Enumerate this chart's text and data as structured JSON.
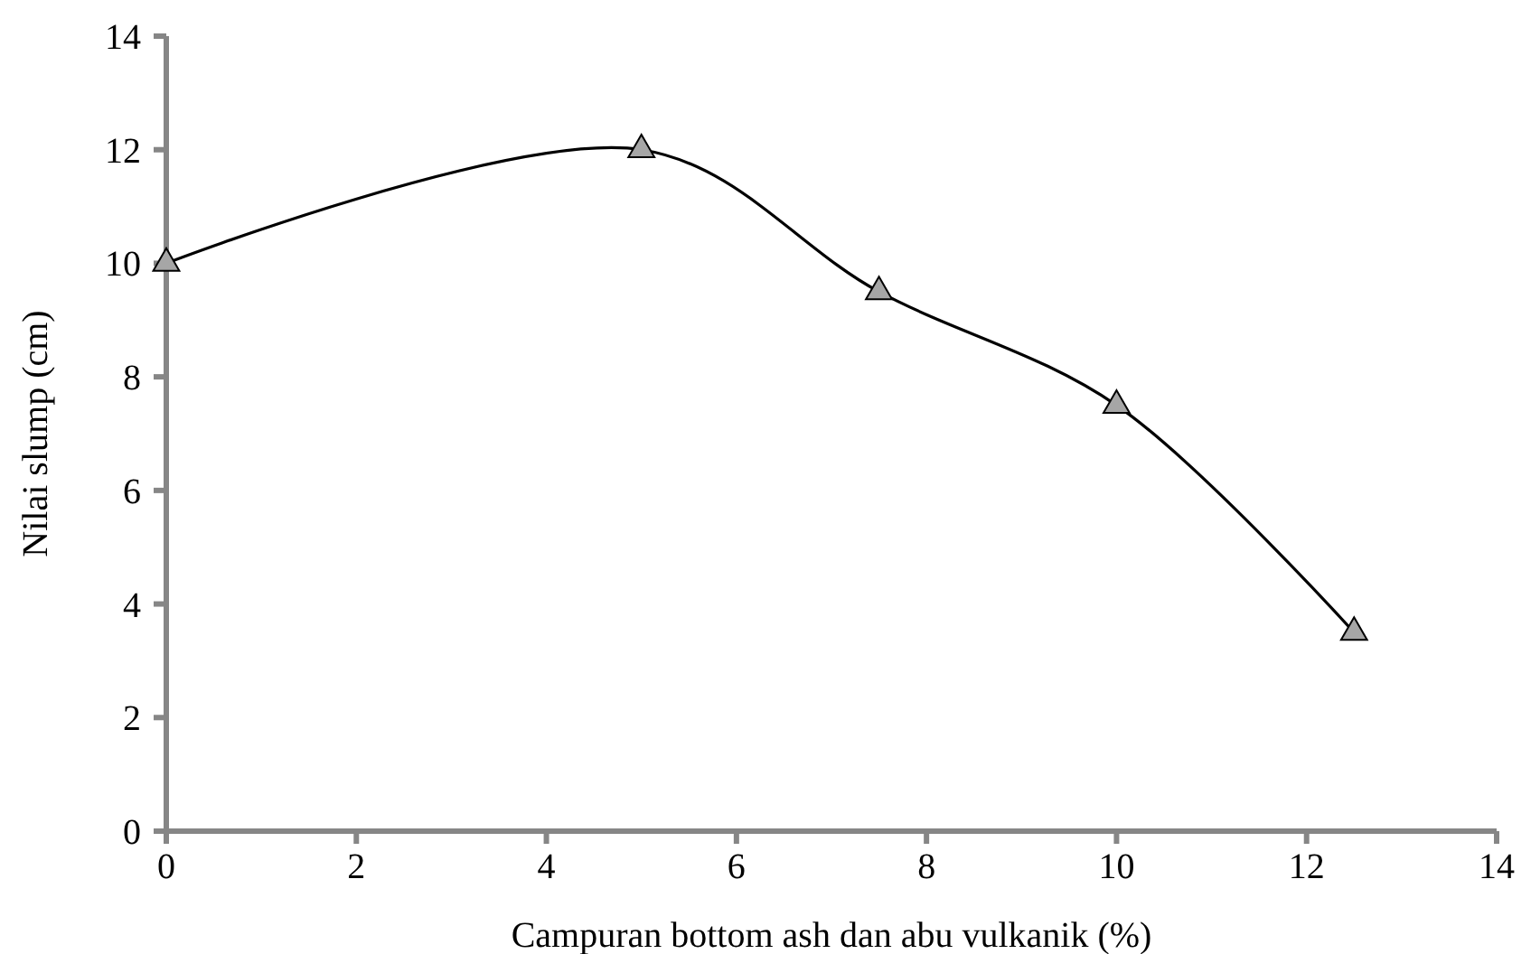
{
  "chart_data": {
    "type": "line",
    "xlabel": "Campuran bottom ash dan abu vulkanik (%)",
    "ylabel": "Nilai slump (cm)",
    "x": [
      0,
      5,
      7.5,
      10,
      12.5
    ],
    "series": [
      {
        "color": "#000000",
        "values": [
          10,
          12,
          9.5,
          7.5,
          3.5
        ]
      }
    ],
    "xlim": [
      0,
      14
    ],
    "xticks": [
      0,
      2,
      4,
      6,
      8,
      10,
      12,
      14
    ],
    "ylim": [
      0,
      14
    ],
    "yticks": [
      0,
      2,
      4,
      6,
      8,
      10,
      12,
      14
    ],
    "grid": false,
    "marker": "triangle",
    "line_style": "solid"
  }
}
